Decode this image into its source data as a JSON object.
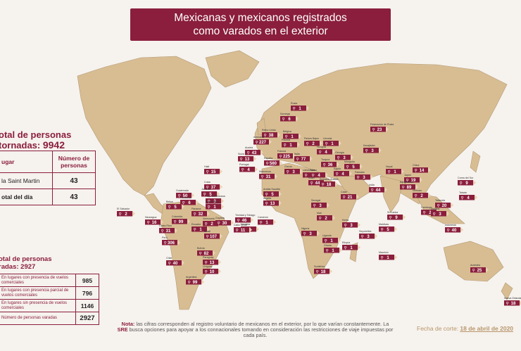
{
  "title": {
    "line1": "Mexicanas y mexicanos registrados",
    "line2": "como varados en el exterior"
  },
  "total_retornadas": {
    "label1": "otal de personas",
    "label2_prefix": "tornadas: ",
    "value": "9942"
  },
  "table1": {
    "header_place": "ugar",
    "header_count": "Número de personas",
    "rows": [
      {
        "place": "la Saint Martin",
        "count": "43"
      }
    ],
    "total_label": "otal del día",
    "total_value": "43"
  },
  "total_varadas": {
    "label1": "otal de personas",
    "label2_prefix": "radas: ",
    "value": "2927"
  },
  "table2": [
    {
      "label": "En lugares con presencia de vuelos comerciales",
      "value": "985"
    },
    {
      "label": "En lugares con presencia parcial de vuelos comerciales",
      "value": "796"
    },
    {
      "label": "En lugares sin presencia de vuelos comerciales",
      "value": "1146"
    },
    {
      "label": "Número de personas varadas",
      "value": "2927"
    }
  ],
  "note": {
    "label": "Nota:",
    "text1": " las cifras corresponden al registro voluntario de mexicanos en el exterior, por lo que varían constantemente. La ",
    "sre": "SRE",
    "text2": " busca opciones para apoyar a los connacionales tomando en consideración las restricciones de viaje impuestas por cada país."
  },
  "date": {
    "label": "Fecha de corte: ",
    "value": "18 de abril de 2020"
  },
  "colors": {
    "accent": "#8a1e3c",
    "land": "#d8bd93",
    "background": "#f6f2ee",
    "note_gold": "#b8966a"
  },
  "markers": [
    {
      "place": "Rusia",
      "value": "1"
    },
    {
      "place": "Noruega",
      "value": "6"
    },
    {
      "place": "Federación de Rusia",
      "value": "23"
    },
    {
      "place": "Reino Unido",
      "value": "38"
    },
    {
      "place": "Bélgica",
      "value": "1"
    },
    {
      "place": "Países Bajos",
      "value": "2"
    },
    {
      "place": "Alemania",
      "value": "227"
    },
    {
      "place": "Polonia",
      "value": "1"
    },
    {
      "place": "Ucrania",
      "value": "1"
    },
    {
      "place": "Kazajistán",
      "value": "3"
    },
    {
      "place": "Austria",
      "value": "43"
    },
    {
      "place": "Suiza",
      "value": "13"
    },
    {
      "place": "Francia",
      "value": "225"
    },
    {
      "place": "Italia",
      "value": "77"
    },
    {
      "place": "Hungría",
      "value": "4"
    },
    {
      "place": "Georgia",
      "value": "3"
    },
    {
      "place": "Mongolia",
      "value": "5"
    },
    {
      "place": "España",
      "value": "560"
    },
    {
      "place": "Portugal",
      "value": "4"
    },
    {
      "place": "Grecia",
      "value": "3"
    },
    {
      "place": "Turquía",
      "value": "36"
    },
    {
      "place": "Uzbekistán",
      "value": "2"
    },
    {
      "place": "China",
      "value": "14"
    },
    {
      "place": "Marruecos",
      "value": "31"
    },
    {
      "place": "Túnez",
      "value": "4"
    },
    {
      "place": "Egipto",
      "value": "4"
    },
    {
      "place": "Israel",
      "value": "44"
    },
    {
      "place": "Emiratos Árabes",
      "value": "18"
    },
    {
      "place": "Pakistán",
      "value": "3"
    },
    {
      "place": "Nepal",
      "value": "1"
    },
    {
      "place": "Japón",
      "value": "19"
    },
    {
      "place": "India",
      "value": "44"
    },
    {
      "place": "Bangladesh",
      "value": "89"
    },
    {
      "place": "Corea del Sur",
      "value": "9"
    },
    {
      "place": "Taiwán",
      "value": "4"
    },
    {
      "place": "Vietnam",
      "value": "2"
    },
    {
      "place": "Tailandia",
      "value": "20"
    },
    {
      "place": "Camboya",
      "value": "2"
    },
    {
      "place": "Malasia",
      "value": "3"
    },
    {
      "place": "Indonesia",
      "value": "40"
    },
    {
      "place": "Sri Lanka",
      "value": "9"
    },
    {
      "place": "Maldivas",
      "value": "5"
    },
    {
      "place": "Catar",
      "value": "21"
    },
    {
      "place": "Arabia Saudita",
      "value": "5"
    },
    {
      "place": "Mauricio",
      "value": "1"
    },
    {
      "place": "Seychelles",
      "value": "3"
    },
    {
      "place": "Kenia",
      "value": "3"
    },
    {
      "place": "Etiopía",
      "value": "1"
    },
    {
      "place": "Nigeria",
      "value": "3"
    },
    {
      "place": "Ghana",
      "value": "1"
    },
    {
      "place": "Mali",
      "value": "2"
    },
    {
      "place": "Senegal",
      "value": "3"
    },
    {
      "place": "Argelia",
      "value": "13"
    },
    {
      "place": "Camerún",
      "value": "1"
    },
    {
      "place": "Uganda",
      "value": "1"
    },
    {
      "place": "Sudáfrica",
      "value": "18"
    },
    {
      "place": "Namibia",
      "value": "1"
    },
    {
      "place": "Cabo Verde",
      "value": "11"
    },
    {
      "place": "Australia",
      "value": "25"
    },
    {
      "place": "Nueva Zelanda",
      "value": "18"
    },
    {
      "place": "Haití",
      "value": "15"
    },
    {
      "place": "Cuba",
      "value": "37"
    },
    {
      "place": "Jamaica",
      "value": "5"
    },
    {
      "place": "Rep. Dominicana",
      "value": "3"
    },
    {
      "place": "Puerto Rico",
      "value": "1"
    },
    {
      "place": "Guatemala",
      "value": "50"
    },
    {
      "place": "Honduras",
      "value": "6"
    },
    {
      "place": "Belice",
      "value": "5"
    },
    {
      "place": "El Salvador",
      "value": "2"
    },
    {
      "place": "Nicaragua",
      "value": "16"
    },
    {
      "place": "Costa Rica",
      "value": "31"
    },
    {
      "place": "Panamá",
      "value": "32"
    },
    {
      "place": "Colombia",
      "value": "99"
    },
    {
      "place": "Venezuela",
      "value": "2"
    },
    {
      "place": "Trinidad y Tobago",
      "value": "46"
    },
    {
      "place": "Guyana",
      "value": "30"
    },
    {
      "place": "Ecuador",
      "value": "1"
    },
    {
      "place": "Perú",
      "value": "306"
    },
    {
      "place": "Brasil",
      "value": "107"
    },
    {
      "place": "Bolivia",
      "value": "82"
    },
    {
      "place": "Paraguay",
      "value": "13"
    },
    {
      "place": "Chile",
      "value": "40"
    },
    {
      "place": "Uruguay",
      "value": "10"
    },
    {
      "place": "Argentina",
      "value": "99"
    }
  ]
}
